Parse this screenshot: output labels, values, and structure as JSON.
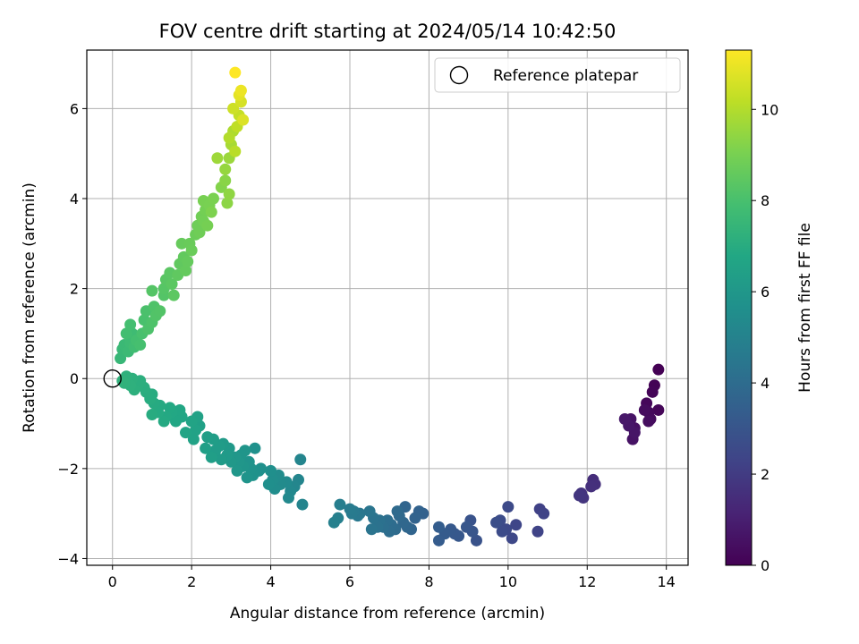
{
  "chart_data": {
    "type": "scatter",
    "title": "FOV centre drift starting at 2024/05/14 10:42:50",
    "xlabel": "Angular distance from reference (arcmin)",
    "ylabel": "Rotation from reference (arcmin)",
    "xlim": [
      -0.65,
      14.55
    ],
    "ylim": [
      -4.15,
      7.3
    ],
    "xticks": [
      0,
      2,
      4,
      6,
      8,
      10,
      12,
      14
    ],
    "yticks": [
      -4,
      -2,
      0,
      2,
      4,
      6
    ],
    "grid": true,
    "legend": {
      "placement": "top-right",
      "entries": [
        "Reference platepar"
      ]
    },
    "reference_point": {
      "x": 0,
      "y": 0,
      "label": "Reference platepar"
    },
    "colorbar": {
      "label": "Hours from first FF file",
      "range": [
        0,
        11.3
      ],
      "ticks": [
        0,
        2,
        4,
        6,
        8,
        10
      ],
      "colormap": "viridis"
    },
    "points": [
      [
        13.8,
        0.2,
        0.0
      ],
      [
        13.7,
        -0.15,
        0.05
      ],
      [
        13.65,
        -0.3,
        0.1
      ],
      [
        13.8,
        -0.7,
        0.15
      ],
      [
        13.5,
        -0.55,
        0.2
      ],
      [
        13.55,
        -0.75,
        0.25
      ],
      [
        13.6,
        -0.9,
        0.3
      ],
      [
        13.45,
        -0.7,
        0.35
      ],
      [
        13.55,
        -0.95,
        0.4
      ],
      [
        13.2,
        -1.1,
        0.5
      ],
      [
        13.15,
        -1.35,
        0.55
      ],
      [
        13.1,
        -0.9,
        0.6
      ],
      [
        13.2,
        -1.2,
        0.65
      ],
      [
        13.05,
        -1.05,
        0.7
      ],
      [
        12.95,
        -0.9,
        0.75
      ],
      [
        12.15,
        -2.25,
        1.5
      ],
      [
        12.2,
        -2.35,
        1.55
      ],
      [
        12.1,
        -2.4,
        1.6
      ],
      [
        11.85,
        -2.55,
        1.7
      ],
      [
        11.9,
        -2.65,
        1.75
      ],
      [
        11.8,
        -2.6,
        1.8
      ],
      [
        10.8,
        -2.9,
        2.2
      ],
      [
        10.9,
        -3.0,
        2.25
      ],
      [
        10.75,
        -3.4,
        2.3
      ],
      [
        10.2,
        -3.25,
        2.4
      ],
      [
        10.1,
        -3.55,
        2.45
      ],
      [
        9.95,
        -3.35,
        2.5
      ],
      [
        10.0,
        -2.85,
        2.55
      ],
      [
        9.85,
        -3.4,
        2.6
      ],
      [
        9.8,
        -3.15,
        2.65
      ],
      [
        9.7,
        -3.2,
        2.7
      ],
      [
        9.2,
        -3.6,
        2.9
      ],
      [
        9.05,
        -3.15,
        2.95
      ],
      [
        9.1,
        -3.4,
        3.0
      ],
      [
        8.95,
        -3.3,
        3.05
      ],
      [
        8.75,
        -3.5,
        3.1
      ],
      [
        8.65,
        -3.45,
        3.15
      ],
      [
        8.55,
        -3.35,
        3.2
      ],
      [
        8.4,
        -3.45,
        3.25
      ],
      [
        8.25,
        -3.6,
        3.3
      ],
      [
        8.25,
        -3.3,
        3.35
      ],
      [
        7.85,
        -3.0,
        3.5
      ],
      [
        7.75,
        -2.95,
        3.55
      ],
      [
        7.65,
        -3.1,
        3.6
      ],
      [
        7.55,
        -3.35,
        3.65
      ],
      [
        7.4,
        -2.85,
        3.7
      ],
      [
        7.45,
        -3.3,
        3.75
      ],
      [
        7.35,
        -3.2,
        3.8
      ],
      [
        7.25,
        -3.05,
        3.85
      ],
      [
        7.2,
        -2.95,
        3.9
      ],
      [
        7.15,
        -3.35,
        3.95
      ],
      [
        7.05,
        -3.25,
        4.0
      ],
      [
        7.0,
        -3.4,
        4.05
      ],
      [
        6.95,
        -3.15,
        4.1
      ],
      [
        6.85,
        -3.3,
        4.15
      ],
      [
        6.75,
        -3.15,
        4.2
      ],
      [
        6.7,
        -3.3,
        4.25
      ],
      [
        6.6,
        -3.1,
        4.3
      ],
      [
        6.55,
        -3.35,
        4.35
      ],
      [
        6.5,
        -2.95,
        4.4
      ],
      [
        6.25,
        -3.0,
        4.45
      ],
      [
        6.2,
        -3.05,
        4.5
      ],
      [
        6.1,
        -2.95,
        4.55
      ],
      [
        6.05,
        -3.0,
        4.6
      ],
      [
        6.0,
        -2.9,
        4.65
      ],
      [
        5.75,
        -2.8,
        4.8
      ],
      [
        5.7,
        -3.1,
        4.85
      ],
      [
        5.6,
        -3.2,
        4.9
      ],
      [
        4.8,
        -2.8,
        5.1
      ],
      [
        4.75,
        -1.8,
        5.12
      ],
      [
        4.7,
        -2.25,
        5.15
      ],
      [
        4.6,
        -2.4,
        5.2
      ],
      [
        4.5,
        -2.5,
        5.25
      ],
      [
        4.45,
        -2.65,
        5.3
      ],
      [
        4.4,
        -2.3,
        5.35
      ],
      [
        4.25,
        -2.35,
        5.4
      ],
      [
        4.2,
        -2.15,
        5.45
      ],
      [
        4.1,
        -2.45,
        5.5
      ],
      [
        4.05,
        -2.25,
        5.55
      ],
      [
        4.0,
        -2.05,
        5.6
      ],
      [
        3.95,
        -2.35,
        5.62
      ],
      [
        3.75,
        -2.0,
        5.65
      ],
      [
        3.7,
        -2.05,
        5.7
      ],
      [
        3.6,
        -1.55,
        5.72
      ],
      [
        3.55,
        -2.15,
        5.75
      ],
      [
        3.5,
        -2.0,
        5.8
      ],
      [
        3.45,
        -1.85,
        5.82
      ],
      [
        3.4,
        -2.2,
        5.85
      ],
      [
        3.35,
        -1.6,
        5.88
      ],
      [
        3.3,
        -1.95,
        5.9
      ],
      [
        3.25,
        -1.7,
        5.92
      ],
      [
        3.2,
        -1.85,
        5.95
      ],
      [
        3.15,
        -2.05,
        5.98
      ],
      [
        3.1,
        -1.75,
        6.0
      ],
      [
        3.0,
        -1.85,
        6.05
      ],
      [
        2.95,
        -1.55,
        6.1
      ],
      [
        2.9,
        -1.7,
        6.12
      ],
      [
        2.8,
        -1.45,
        6.15
      ],
      [
        2.75,
        -1.8,
        6.2
      ],
      [
        2.7,
        -1.5,
        6.22
      ],
      [
        2.6,
        -1.6,
        6.25
      ],
      [
        2.55,
        -1.35,
        6.3
      ],
      [
        2.5,
        -1.75,
        6.32
      ],
      [
        2.4,
        -1.3,
        6.35
      ],
      [
        2.35,
        -1.55,
        6.4
      ],
      [
        2.2,
        -1.05,
        6.45
      ],
      [
        2.15,
        -0.85,
        6.5
      ],
      [
        2.1,
        -1.15,
        6.52
      ],
      [
        2.05,
        -1.35,
        6.55
      ],
      [
        2.0,
        -0.95,
        6.6
      ],
      [
        1.85,
        -1.2,
        6.65
      ],
      [
        1.75,
        -0.85,
        6.7
      ],
      [
        1.7,
        -0.7,
        6.72
      ],
      [
        1.6,
        -0.95,
        6.75
      ],
      [
        1.5,
        -0.75,
        6.8
      ],
      [
        1.45,
        -0.65,
        6.82
      ],
      [
        1.35,
        -0.85,
        6.85
      ],
      [
        1.3,
        -0.95,
        6.88
      ],
      [
        1.2,
        -0.6,
        6.9
      ],
      [
        1.15,
        -0.75,
        6.92
      ],
      [
        1.05,
        -0.55,
        6.95
      ],
      [
        1.0,
        -0.8,
        6.98
      ],
      [
        1.0,
        -0.35,
        7.0
      ],
      [
        0.95,
        -0.45,
        7.02
      ],
      [
        0.85,
        -0.3,
        7.05
      ],
      [
        0.8,
        -0.2,
        7.08
      ],
      [
        0.7,
        -0.05,
        7.1
      ],
      [
        0.65,
        -0.15,
        7.12
      ],
      [
        0.55,
        -0.25,
        7.15
      ],
      [
        0.5,
        0.0,
        7.18
      ],
      [
        0.45,
        -0.15,
        7.2
      ],
      [
        0.35,
        0.05,
        7.22
      ],
      [
        0.3,
        -0.1,
        7.25
      ],
      [
        0.25,
        -0.05,
        7.28
      ],
      [
        0.2,
        0.45,
        7.5
      ],
      [
        0.25,
        0.65,
        7.55
      ],
      [
        0.3,
        0.75,
        7.6
      ],
      [
        0.4,
        0.6,
        7.65
      ],
      [
        0.45,
        0.8,
        7.7
      ],
      [
        0.5,
        1.0,
        7.75
      ],
      [
        0.55,
        0.7,
        7.8
      ],
      [
        0.35,
        1.0,
        7.85
      ],
      [
        0.45,
        1.2,
        7.9
      ],
      [
        0.6,
        0.85,
        7.92
      ],
      [
        0.7,
        0.75,
        7.95
      ],
      [
        0.75,
        1.0,
        8.0
      ],
      [
        0.8,
        1.3,
        8.02
      ],
      [
        0.85,
        1.5,
        8.05
      ],
      [
        0.9,
        1.1,
        8.1
      ],
      [
        1.0,
        1.25,
        8.12
      ],
      [
        1.05,
        1.6,
        8.15
      ],
      [
        1.1,
        1.4,
        8.2
      ],
      [
        1.2,
        1.5,
        8.22
      ],
      [
        1.3,
        1.85,
        8.25
      ],
      [
        1.0,
        1.95,
        8.28
      ],
      [
        1.3,
        2.0,
        8.3
      ],
      [
        1.35,
        2.2,
        8.35
      ],
      [
        1.45,
        2.35,
        8.4
      ],
      [
        1.5,
        2.1,
        8.42
      ],
      [
        1.55,
        1.85,
        8.45
      ],
      [
        1.65,
        2.3,
        8.5
      ],
      [
        1.7,
        2.55,
        8.52
      ],
      [
        1.8,
        2.7,
        8.55
      ],
      [
        1.85,
        2.4,
        8.6
      ],
      [
        1.9,
        2.6,
        8.62
      ],
      [
        1.75,
        3.0,
        8.65
      ],
      [
        1.95,
        3.0,
        8.7
      ],
      [
        2.0,
        2.85,
        8.72
      ],
      [
        2.1,
        3.2,
        8.75
      ],
      [
        2.15,
        3.4,
        8.8
      ],
      [
        2.2,
        3.25,
        8.82
      ],
      [
        2.25,
        3.6,
        8.85
      ],
      [
        2.3,
        3.5,
        8.9
      ],
      [
        2.35,
        3.75,
        8.92
      ],
      [
        2.4,
        3.4,
        8.95
      ],
      [
        2.3,
        3.95,
        9.0
      ],
      [
        2.45,
        3.85,
        9.02
      ],
      [
        2.55,
        4.0,
        9.05
      ],
      [
        2.5,
        3.7,
        9.1
      ],
      [
        2.75,
        4.25,
        9.2
      ],
      [
        2.85,
        4.4,
        9.3
      ],
      [
        2.9,
        3.9,
        9.35
      ],
      [
        2.95,
        4.1,
        9.4
      ],
      [
        2.85,
        4.65,
        9.5
      ],
      [
        2.95,
        4.9,
        9.6
      ],
      [
        2.65,
        4.9,
        9.65
      ],
      [
        3.0,
        5.2,
        9.8
      ],
      [
        3.05,
        5.5,
        9.9
      ],
      [
        2.95,
        5.35,
        10.0
      ],
      [
        3.1,
        5.05,
        10.1
      ],
      [
        3.15,
        5.6,
        10.2
      ],
      [
        3.2,
        5.85,
        10.3
      ],
      [
        3.05,
        6.0,
        10.45
      ],
      [
        3.25,
        6.15,
        10.6
      ],
      [
        3.3,
        5.75,
        10.7
      ],
      [
        3.2,
        6.3,
        10.85
      ],
      [
        3.25,
        6.4,
        11.0
      ],
      [
        3.1,
        6.8,
        11.3
      ]
    ]
  }
}
